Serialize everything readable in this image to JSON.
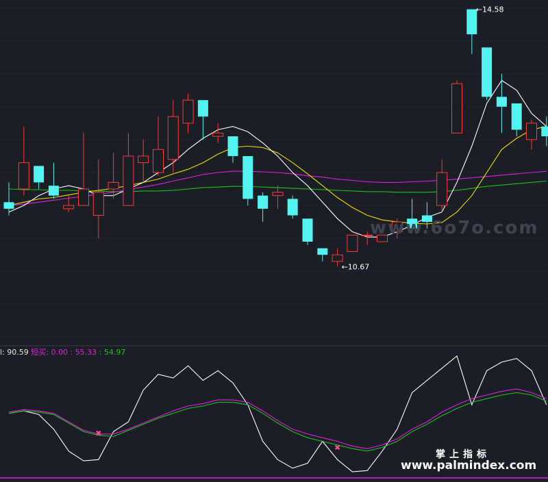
{
  "chart_data": {
    "type": "candlestick",
    "main": {
      "ylim": [
        9.5,
        14.7
      ],
      "colors": {
        "up": "#ff3b3b",
        "down": "#54f3f3",
        "ma5": "#ffffff",
        "ma10": "#f0e000",
        "ma20": "#e020e0",
        "ma60": "#20c020"
      },
      "candles": [
        {
          "o": 11.65,
          "c": 11.55,
          "h": 11.95,
          "l": 11.45
        },
        {
          "o": 11.85,
          "c": 12.25,
          "h": 12.8,
          "l": 11.75
        },
        {
          "o": 12.2,
          "c": 11.95,
          "h": 12.2,
          "l": 11.85
        },
        {
          "o": 11.9,
          "c": 11.75,
          "h": 12.25,
          "l": 11.7
        },
        {
          "o": 11.55,
          "c": 11.6,
          "h": 11.75,
          "l": 11.5
        },
        {
          "o": 11.6,
          "c": 11.85,
          "h": 12.7,
          "l": 11.6
        },
        {
          "o": 11.45,
          "c": 11.8,
          "h": 12.3,
          "l": 11.1
        },
        {
          "o": 11.85,
          "c": 11.95,
          "h": 12.4,
          "l": 11.7
        },
        {
          "o": 11.6,
          "c": 12.35,
          "h": 12.7,
          "l": 11.6
        },
        {
          "o": 12.25,
          "c": 12.35,
          "h": 12.6,
          "l": 11.95
        },
        {
          "o": 12.1,
          "c": 12.45,
          "h": 12.95,
          "l": 12.05
        },
        {
          "o": 12.3,
          "c": 12.95,
          "h": 13.2,
          "l": 12.1
        },
        {
          "o": 12.85,
          "c": 13.2,
          "h": 13.3,
          "l": 12.7
        },
        {
          "o": 13.2,
          "c": 12.95,
          "h": 13.2,
          "l": 12.6
        },
        {
          "o": 12.65,
          "c": 12.7,
          "h": 12.85,
          "l": 12.55
        },
        {
          "o": 12.65,
          "c": 12.35,
          "h": 12.65,
          "l": 12.25
        },
        {
          "o": 12.35,
          "c": 11.7,
          "h": 12.35,
          "l": 11.6
        },
        {
          "o": 11.75,
          "c": 11.55,
          "h": 11.8,
          "l": 11.35
        },
        {
          "o": 11.75,
          "c": 11.8,
          "h": 11.9,
          "l": 11.55
        },
        {
          "o": 11.7,
          "c": 11.45,
          "h": 11.75,
          "l": 11.4
        },
        {
          "o": 11.4,
          "c": 11.05,
          "h": 11.4,
          "l": 11.0
        },
        {
          "o": 10.95,
          "c": 10.85,
          "h": 10.95,
          "l": 10.75
        },
        {
          "o": 10.75,
          "c": 10.85,
          "h": 10.95,
          "l": 10.67
        },
        {
          "o": 10.9,
          "c": 11.15,
          "h": 11.15,
          "l": 10.9
        },
        {
          "o": 11.15,
          "c": 11.15,
          "h": 11.2,
          "l": 11.0
        },
        {
          "o": 11.05,
          "c": 11.15,
          "h": 11.15,
          "l": 11.05
        },
        {
          "o": 11.2,
          "c": 11.35,
          "h": 11.4,
          "l": 11.1
        },
        {
          "o": 11.4,
          "c": 11.25,
          "h": 11.7,
          "l": 11.2
        },
        {
          "o": 11.45,
          "c": 11.35,
          "h": 11.65,
          "l": 11.25
        },
        {
          "o": 11.6,
          "c": 12.1,
          "h": 12.3,
          "l": 11.5
        },
        {
          "o": 12.7,
          "c": 13.45,
          "h": 13.5,
          "l": 12.7
        },
        {
          "o": 14.58,
          "c": 14.2,
          "h": 14.58,
          "l": 13.9
        },
        {
          "o": 14.0,
          "c": 13.25,
          "h": 14.0,
          "l": 13.2
        },
        {
          "o": 13.25,
          "c": 13.1,
          "h": 13.6,
          "l": 12.7
        },
        {
          "o": 13.15,
          "c": 12.75,
          "h": 13.15,
          "l": 12.65
        },
        {
          "o": 12.6,
          "c": 12.85,
          "h": 12.9,
          "l": 12.45
        },
        {
          "o": 12.8,
          "c": 12.65,
          "h": 12.95,
          "l": 12.5
        }
      ],
      "ma5": [
        11.5,
        11.6,
        11.75,
        11.85,
        11.9,
        11.85,
        11.75,
        11.75,
        11.85,
        11.95,
        12.1,
        12.25,
        12.45,
        12.62,
        12.75,
        12.8,
        12.72,
        12.55,
        12.35,
        12.1,
        11.9,
        11.65,
        11.4,
        11.2,
        11.12,
        11.12,
        11.2,
        11.3,
        11.42,
        11.5,
        11.95,
        12.5,
        13.15,
        13.5,
        13.35,
        13.0,
        12.8
      ],
      "ma10": [
        11.6,
        11.65,
        11.7,
        11.72,
        11.76,
        11.8,
        11.83,
        11.86,
        11.9,
        11.95,
        12.0,
        12.08,
        12.15,
        12.25,
        12.38,
        12.48,
        12.5,
        12.48,
        12.4,
        12.25,
        12.08,
        11.9,
        11.72,
        11.57,
        11.45,
        11.38,
        11.35,
        11.33,
        11.32,
        11.34,
        11.5,
        11.75,
        12.1,
        12.45,
        12.62,
        12.75,
        12.8
      ],
      "ma20": [
        11.6,
        11.62,
        11.65,
        11.68,
        11.71,
        11.74,
        11.77,
        11.8,
        11.84,
        11.88,
        11.92,
        11.97,
        12.02,
        12.07,
        12.1,
        12.12,
        12.12,
        12.11,
        12.1,
        12.08,
        12.05,
        12.03,
        12.0,
        11.98,
        11.96,
        11.95,
        11.95,
        11.96,
        11.97,
        11.98,
        12.0,
        12.02,
        12.04,
        12.06,
        12.08,
        12.1,
        12.12
      ],
      "ma60": [
        11.85,
        11.84,
        11.84,
        11.83,
        11.83,
        11.82,
        11.82,
        11.81,
        11.81,
        11.82,
        11.82,
        11.83,
        11.85,
        11.87,
        11.88,
        11.89,
        11.89,
        11.88,
        11.87,
        11.86,
        11.85,
        11.84,
        11.83,
        11.82,
        11.81,
        11.81,
        11.8,
        11.8,
        11.8,
        11.81,
        11.83,
        11.86,
        11.89,
        11.91,
        11.93,
        11.95,
        11.97
      ],
      "annotations": [
        {
          "index": 31,
          "value": 14.58,
          "text": "14.58",
          "side": "right"
        },
        {
          "index": 22,
          "value": 10.67,
          "text": "10.67",
          "side": "right"
        }
      ],
      "gridlines": [
        9.6,
        10.1,
        10.6,
        11.1,
        11.6,
        12.1,
        12.6,
        13.1,
        13.6,
        14.1,
        14.6
      ]
    },
    "indicator": {
      "ylim": [
        0,
        100
      ],
      "label_prefix": "l: ",
      "value1": "90.59",
      "name": "短买:",
      "value2": "0.00",
      "sep": ":",
      "value3": "55.33",
      "value4": "54.97",
      "white": [
        53,
        55,
        52,
        40,
        22,
        14,
        15,
        38,
        46,
        72,
        85,
        82,
        92,
        80,
        88,
        78,
        60,
        30,
        15,
        8,
        12,
        30,
        15,
        5,
        6,
        22,
        40,
        70,
        80,
        90,
        100,
        60,
        88,
        95,
        98,
        88,
        60
      ],
      "magenta": [
        54,
        56,
        55,
        53,
        46,
        39,
        36,
        36,
        40,
        45,
        50,
        55,
        59,
        61,
        64,
        64,
        62,
        55,
        47,
        40,
        36,
        33,
        30,
        26,
        24,
        27,
        32,
        40,
        46,
        54,
        60,
        65,
        68,
        71,
        73,
        70,
        65
      ],
      "green": [
        53,
        55,
        54,
        52,
        45,
        38,
        35,
        34,
        39,
        44,
        49,
        53,
        57,
        59,
        62,
        62,
        60,
        53,
        45,
        38,
        33,
        30,
        27,
        24,
        22,
        25,
        30,
        38,
        44,
        51,
        57,
        62,
        65,
        68,
        70,
        68,
        63
      ],
      "markers": [
        {
          "index": 6,
          "value": 37.5
        },
        {
          "index": 22,
          "value": 25.5
        }
      ]
    }
  },
  "watermarks": {
    "top_right": "www.6o7o.com",
    "bottom_cn": "掌上指标",
    "bottom_url": "www.palmindex.com"
  }
}
